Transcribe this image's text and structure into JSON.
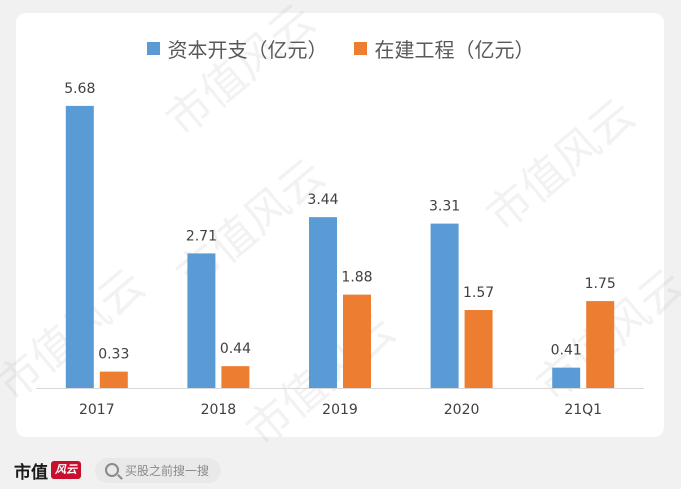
{
  "colors": {
    "series1": "#5b9bd5",
    "series2": "#ed7d31",
    "label": "#404040",
    "axis": "#d9d9d9"
  },
  "watermark_text": "市值风云",
  "footer": {
    "brand_text": "市值",
    "brand_logo_text": "风云",
    "search_placeholder": "买股之前搜一搜",
    "search_icon": "search-icon"
  },
  "chart_data": {
    "type": "bar",
    "categories": [
      "2017",
      "2018",
      "2019",
      "2020",
      "21Q1"
    ],
    "series": [
      {
        "name": "资本开支（亿元）",
        "values": [
          5.68,
          2.71,
          3.44,
          3.31,
          0.41
        ]
      },
      {
        "name": "在建工程（亿元）",
        "values": [
          0.33,
          0.44,
          1.88,
          1.57,
          1.75
        ]
      }
    ],
    "ylim": [
      0,
      6.0
    ],
    "grid": false,
    "legend": "top-center",
    "title": "",
    "xlabel": "",
    "ylabel": ""
  }
}
